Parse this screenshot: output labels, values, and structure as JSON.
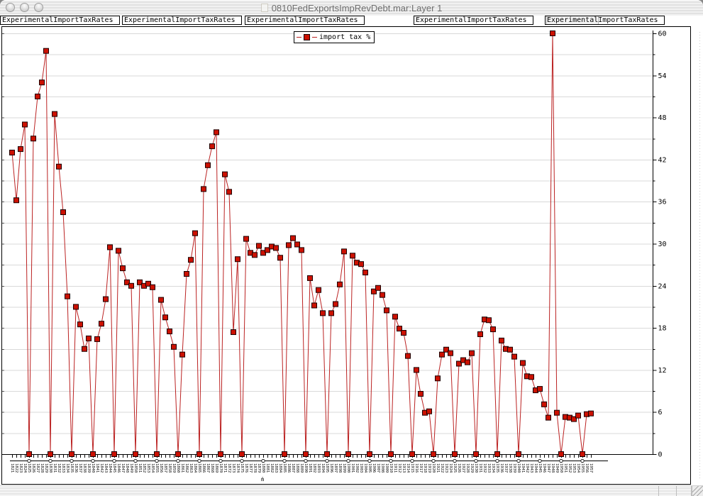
{
  "window": {
    "title": "0810FedExportsImpRevDebt.mar:Layer 1",
    "traffic_buttons": [
      "close",
      "minimize",
      "zoom"
    ]
  },
  "tab_bar": {
    "items": [
      {
        "label": "ExperimentalImportTaxRates"
      },
      {
        "label": "ExperimentalImportTaxRates"
      },
      {
        "label": "ExperimentalImportTaxRates"
      },
      {
        "label": "ExperimentalImportTaxRates"
      },
      {
        "prefix": "Experimental",
        "suffix": "ImportTaxRates"
      }
    ]
  },
  "legend": {
    "label": "import tax %"
  },
  "axes": {
    "y": {
      "min": 0,
      "max": 60,
      "major_step": 6,
      "minor_step": 3,
      "side": "right",
      "tick_labels": [
        "0",
        "6",
        "12",
        "18",
        "24",
        "30",
        "36",
        "42",
        "48",
        "54",
        "60"
      ]
    },
    "x": {
      "note": "m̂",
      "marker_every_years": 5,
      "label_rotation_deg": 90
    }
  },
  "colors": {
    "line": "#bb2222",
    "marker_fill": "#cc1100",
    "marker_edge": "#1a0000",
    "grid": "#d9d9d9",
    "axis": "#000000",
    "title_text": "#6e6e6e"
  },
  "chart_data": {
    "type": "line",
    "legend": [
      "import tax %"
    ],
    "ylim": [
      0,
      60
    ],
    "grid": "horizontal, every 3 units, light gray",
    "x": [
      1821,
      1822,
      1823,
      1824,
      1825,
      1826,
      1827,
      1828,
      1829,
      1830,
      1831,
      1832,
      1833,
      1834,
      1835,
      1836,
      1837,
      1838,
      1839,
      1840,
      1841,
      1842,
      1843,
      1844,
      1845,
      1846,
      1847,
      1848,
      1849,
      1850,
      1851,
      1852,
      1853,
      1854,
      1855,
      1856,
      1857,
      1858,
      1859,
      1860,
      1861,
      1862,
      1863,
      1864,
      1865,
      1866,
      1867,
      1868,
      1869,
      1870,
      1871,
      1872,
      1873,
      1874,
      1875,
      1876,
      1877,
      1878,
      1879,
      1880,
      1881,
      1882,
      1883,
      1884,
      1885,
      1886,
      1887,
      1888,
      1889,
      1890,
      1891,
      1892,
      1893,
      1894,
      1895,
      1896,
      1897,
      1898,
      1899,
      1900,
      1901,
      1902,
      1903,
      1904,
      1905,
      1906,
      1907,
      1908,
      1909,
      1910,
      1911,
      1912,
      1913,
      1914,
      1915,
      1916,
      1917,
      1918,
      1919,
      1920,
      1921,
      1922,
      1923,
      1924,
      1925,
      1926,
      1927,
      1928,
      1929,
      1930,
      1931,
      1932,
      1933,
      1934,
      1935,
      1936,
      1937,
      1938,
      1939,
      1940,
      1941,
      1942,
      1943,
      1944,
      1945,
      1946,
      1947,
      1948,
      1949,
      1950,
      1951,
      1952,
      1953,
      1954,
      1955,
      1956,
      1957
    ],
    "values": [
      43,
      36.2,
      43.5,
      47,
      0,
      45,
      51,
      53,
      57.5,
      0,
      48.5,
      41,
      34.5,
      22.5,
      0,
      21,
      18.5,
      15,
      16.5,
      0,
      16.4,
      18.6,
      22.1,
      29.5,
      0,
      29,
      26.5,
      24.5,
      24,
      0,
      24.5,
      24,
      24.3,
      23.8,
      0,
      22,
      19.5,
      17.5,
      15.3,
      0,
      14.2,
      25.7,
      27.7,
      31.5,
      0,
      37.8,
      41.2,
      43.9,
      45.9,
      0,
      39.9,
      37.4,
      17.4,
      27.8,
      0,
      30.7,
      28.7,
      28.4,
      29.7,
      28.7,
      29.1,
      29.6,
      29.4,
      28,
      0,
      29.8,
      30.8,
      29.9,
      29.1,
      0,
      25.1,
      21.2,
      23.4,
      20.1,
      0,
      20.1,
      21.4,
      24.2,
      28.9,
      0,
      28.3,
      27.3,
      27.1,
      25.9,
      0,
      23.2,
      23.7,
      22.7,
      20.5,
      0,
      19.6,
      17.9,
      17.3,
      14,
      0,
      12,
      8.6,
      5.9,
      6.1,
      0,
      10.8,
      14.2,
      14.9,
      14.4,
      0,
      12.9,
      13.4,
      13.1,
      14.4,
      0,
      17.1,
      19.2,
      19.1,
      17.8,
      0,
      16.2,
      15,
      14.9,
      13.9,
      0,
      13,
      11.1,
      11,
      9.1,
      9.3,
      7.1,
      5.2,
      60,
      5.9,
      0,
      5.3,
      5.2,
      5,
      5.5,
      0,
      5.7,
      5.8
    ]
  }
}
